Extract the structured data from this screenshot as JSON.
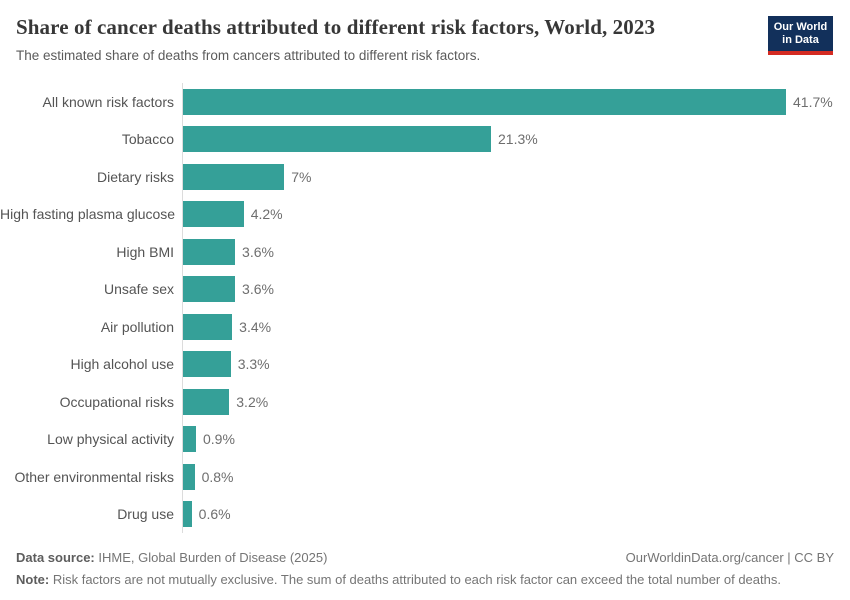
{
  "header": {
    "title": "Share of cancer deaths attributed to different risk factors, World, 2023",
    "subtitle": "The estimated share of deaths from cancers attributed to different risk factors."
  },
  "logo": {
    "line1": "Our World",
    "line2": "in Data",
    "bg_color": "#12305b",
    "accent_color": "#d42b22"
  },
  "chart_data": {
    "type": "bar",
    "orientation": "horizontal",
    "title": "Share of cancer deaths attributed to different risk factors, World, 2023",
    "categories": [
      "All known risk factors",
      "Tobacco",
      "Dietary risks",
      "High fasting plasma glucose",
      "High BMI",
      "Unsafe sex",
      "Air pollution",
      "High alcohol use",
      "Occupational risks",
      "Low physical activity",
      "Other environmental risks",
      "Drug use"
    ],
    "values": [
      41.7,
      21.3,
      7,
      4.2,
      3.6,
      3.6,
      3.4,
      3.3,
      3.2,
      0.9,
      0.8,
      0.6
    ],
    "value_labels": [
      "41.7%",
      "21.3%",
      "7%",
      "4.2%",
      "3.6%",
      "3.6%",
      "3.4%",
      "3.3%",
      "3.2%",
      "0.9%",
      "0.8%",
      "0.6%"
    ],
    "bar_color": "#35a098",
    "axis_line_color": "#dcdcdc",
    "xlim": [
      0,
      41.7
    ],
    "grid": false,
    "legend": "none",
    "xlabel": "",
    "ylabel": ""
  },
  "footer": {
    "source_label": "Data source:",
    "source_text": " IHME, Global Burden of Disease (2025)",
    "link_text": "OurWorldinData.org/cancer",
    "separator": " | ",
    "license_text": "CC BY",
    "note_label": "Note:",
    "note_text": " Risk factors are not mutually exclusive. The sum of deaths attributed to each risk factor can exceed the total number of deaths."
  }
}
